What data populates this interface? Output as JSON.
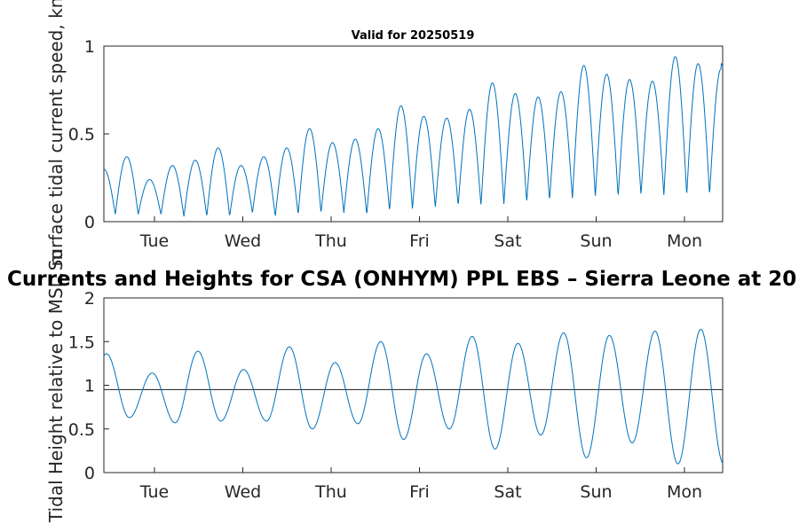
{
  "chart_data": [
    {
      "type": "line",
      "title": "Valid for 20250519",
      "xlabel": "",
      "ylabel": "Surface tidal current speed, kn",
      "x_tick_labels": [
        "Tue",
        "Wed",
        "Thu",
        "Fri",
        "Sat",
        "Sun",
        "Mon"
      ],
      "xlim_days": [
        0,
        7
      ],
      "ylim": [
        0,
        1
      ],
      "y_ticks": [
        0,
        0.5,
        1
      ],
      "y_tick_labels": [
        "0",
        "0.5",
        "1"
      ],
      "grid": false,
      "series": [
        {
          "peaks": [
            0.3,
            0.37,
            0.24,
            0.32,
            0.35,
            0.42,
            0.32,
            0.37,
            0.42,
            0.53,
            0.45,
            0.47,
            0.53,
            0.66,
            0.6,
            0.59,
            0.64,
            0.79,
            0.73,
            0.71,
            0.74,
            0.89,
            0.84,
            0.81,
            0.8,
            0.94,
            0.9,
            0.87
          ],
          "troughs": [
            0.04,
            0.04,
            0.04,
            0.03,
            0.03,
            0.03,
            0.05,
            0.03,
            0.04,
            0.05,
            0.05,
            0.04,
            0.06,
            0.07,
            0.08,
            0.09,
            0.09,
            0.1,
            0.11,
            0.12,
            0.13,
            0.14,
            0.14,
            0.15,
            0.15,
            0.15,
            0.15
          ],
          "color": "#0072BD"
        }
      ]
    },
    {
      "type": "line",
      "title": "Currents and Heights for CSA (ONHYM) PPL EBS  – Sierra Leone at 20",
      "xlabel": "",
      "ylabel": "Tidal Height relative to MSL, m",
      "x_tick_labels": [
        "Tue",
        "Wed",
        "Thu",
        "Fri",
        "Sat",
        "Sun",
        "Mon"
      ],
      "xlim_days": [
        0,
        7
      ],
      "ylim": [
        0,
        2
      ],
      "y_ticks": [
        0,
        0.5,
        1,
        1.5,
        2
      ],
      "y_tick_labels": [
        "0",
        "0.5",
        "1",
        "1.5",
        "2"
      ],
      "grid": false,
      "reference_line": 0.95,
      "series": [
        {
          "highs": [
            1.36,
            1.14,
            1.39,
            1.18,
            1.44,
            1.26,
            1.5,
            1.36,
            1.56,
            1.48,
            1.6,
            1.57,
            1.62,
            1.64
          ],
          "lows": [
            0.63,
            0.57,
            0.59,
            0.59,
            0.5,
            0.56,
            0.38,
            0.5,
            0.27,
            0.43,
            0.17,
            0.34,
            0.1
          ],
          "color": "#0072BD"
        }
      ]
    }
  ]
}
